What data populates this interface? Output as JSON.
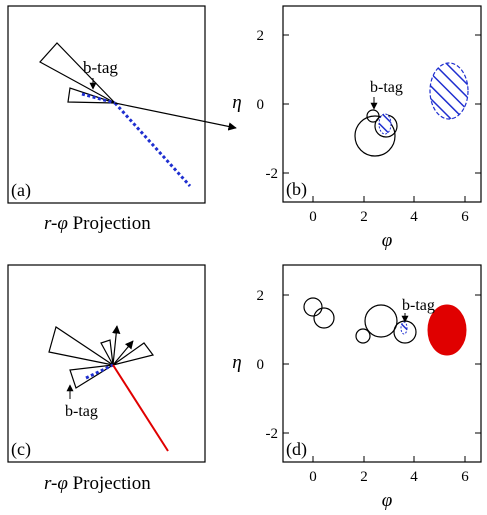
{
  "panels": {
    "a": {
      "label": "(a)",
      "tag": "b-tag",
      "caption_italic": "r-φ",
      "caption_text": " Projection"
    },
    "b": {
      "label": "(b)",
      "tag": "b-tag",
      "xlabel": "φ",
      "ylabel": "η",
      "xticks": [
        "0",
        "2",
        "4",
        "6"
      ],
      "yticks": [
        "2",
        "0",
        "-2"
      ]
    },
    "c": {
      "label": "(c)",
      "tag": "b-tag",
      "caption_italic": "r-φ",
      "caption_text": " Projection"
    },
    "d": {
      "label": "(d)",
      "tag": "b-tag",
      "xlabel": "φ",
      "ylabel": "η",
      "xticks": [
        "0",
        "2",
        "4",
        "6"
      ],
      "yticks": [
        "2",
        "0",
        "-2"
      ]
    }
  },
  "colors": {
    "dashed_track": "#1f2fd0",
    "hatch": "#1f2fd0",
    "filled_region": "#e00000",
    "red_line": "#e00000",
    "ink": "#000000"
  }
}
